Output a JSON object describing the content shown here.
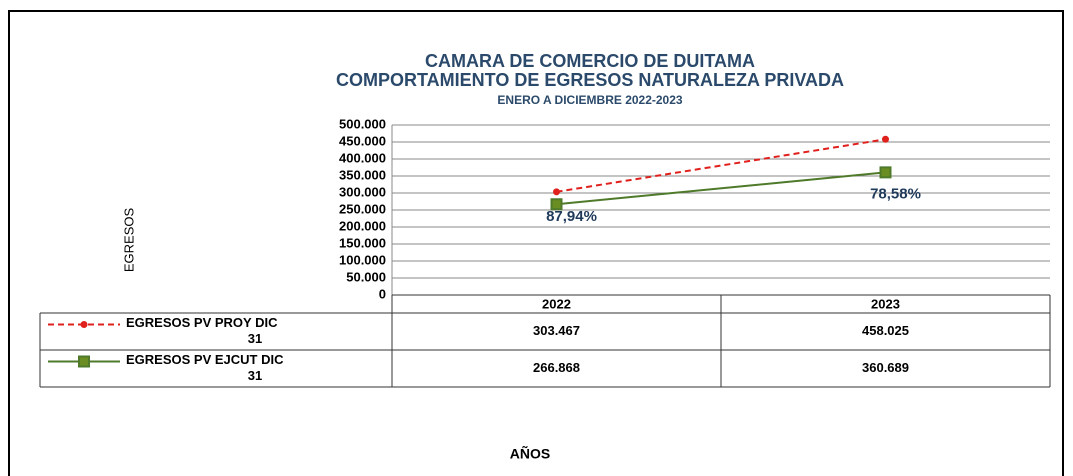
{
  "chart_data": {
    "type": "line",
    "title": "CAMARA DE COMERCIO DE DUITAMA",
    "subtitle": "COMPORTAMIENTO DE EGRESOS NATURALEZA PRIVADA",
    "period": "ENERO A DICIEMBRE 2022-2023",
    "y_label": "EGRESOS",
    "x_label": "AÑOS",
    "categories": [
      "2022",
      "2023"
    ],
    "series": [
      {
        "name": "EGRESOS PV PROY DIC 31",
        "color": "#e0201c",
        "dash": true,
        "values": [
          303467,
          458025
        ],
        "value_labels": [
          "303.467",
          "458.025"
        ]
      },
      {
        "name": "EGRESOS PV EJCUT DIC 31",
        "color": "#4e7a2a",
        "dash": false,
        "values": [
          266868,
          360689
        ],
        "value_labels": [
          "266.868",
          "360.689"
        ],
        "annotations": [
          "87,94%",
          "78,58%"
        ]
      }
    ],
    "ylim": [
      0,
      500000
    ],
    "yticks": [
      0,
      {
        "value": 50000,
        "label": "50.000"
      },
      {
        "value": 100000,
        "label": "100.000"
      },
      {
        "value": 150000,
        "label": "150.000"
      },
      {
        "value": 200000,
        "label": "200.000"
      },
      {
        "value": 250000,
        "label": "250.000"
      },
      {
        "value": 300000,
        "label": "300.000"
      },
      {
        "value": 350000,
        "label": "350.000"
      },
      {
        "value": 400000,
        "label": "400.000"
      },
      {
        "value": 450000,
        "label": "450.000"
      },
      {
        "value": 500000,
        "label": "500.000"
      }
    ],
    "grid": true
  }
}
